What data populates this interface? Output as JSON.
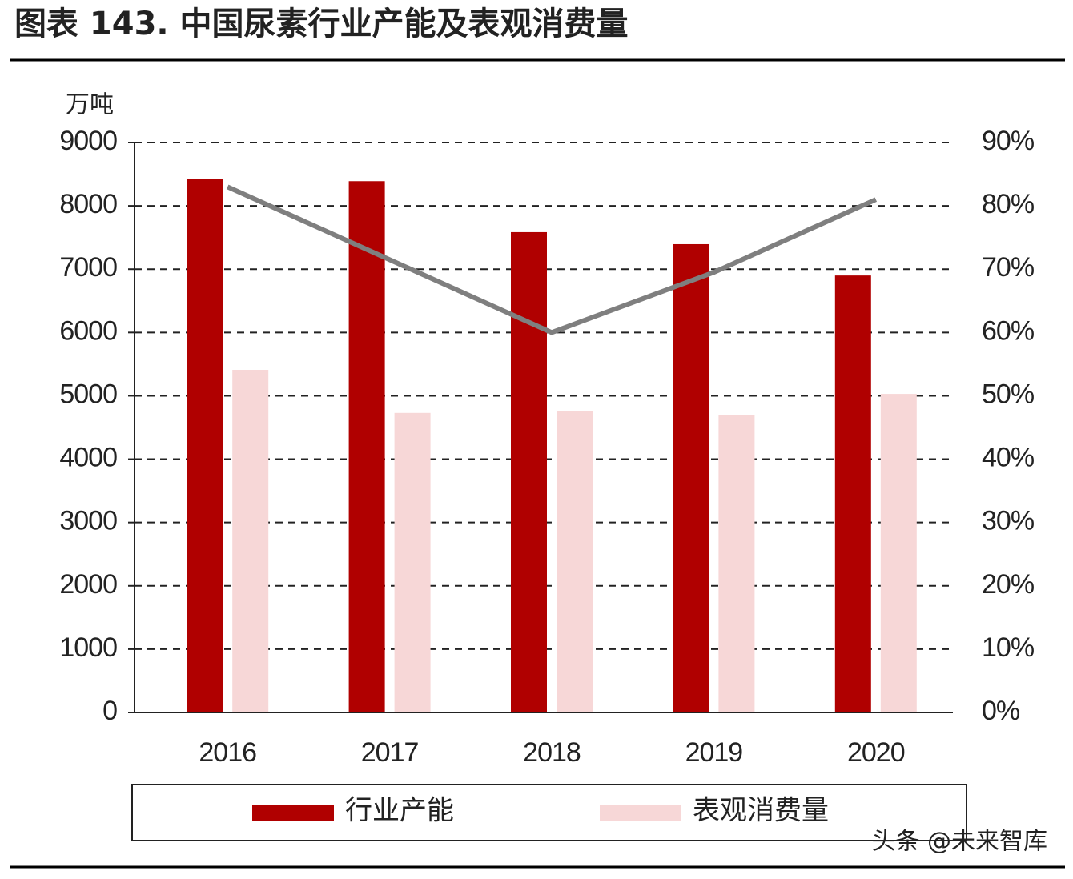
{
  "chart_data": {
    "type": "bar",
    "title": "图表 143. 中国尿素行业产能及表观消费量",
    "y_label": "万吨",
    "categories": [
      "2016",
      "2017",
      "2018",
      "2019",
      "2020"
    ],
    "series": [
      {
        "name": "行业产能",
        "color": "#b00000",
        "values": [
          8430,
          8390,
          7585,
          7395,
          6900
        ]
      },
      {
        "name": "表观消费量",
        "color": "#f7d7d7",
        "values": [
          5410,
          4730,
          4765,
          4700,
          5030
        ]
      },
      {
        "type": "line",
        "axis": "y2",
        "color": "#7f7f7f",
        "values": [
          83,
          71.5,
          60,
          69.5,
          81
        ]
      }
    ],
    "ylim": [
      0,
      9000
    ],
    "yticks": [
      0,
      1000,
      2000,
      3000,
      4000,
      5000,
      6000,
      7000,
      8000,
      9000
    ],
    "y2lim": [
      0,
      90
    ],
    "y2ticks": [
      {
        "value": 0,
        "label": "0%"
      },
      {
        "value": 10,
        "label": "10%"
      },
      {
        "value": 20,
        "label": "20%"
      },
      {
        "value": 30,
        "label": "30%"
      },
      {
        "value": 40,
        "label": "40%"
      },
      {
        "value": 50,
        "label": "50%"
      },
      {
        "value": 60,
        "label": "60%"
      },
      {
        "value": 70,
        "label": "70%"
      },
      {
        "value": 80,
        "label": "80%"
      },
      {
        "value": 90,
        "label": "90%"
      }
    ],
    "grid": true,
    "legend": "bottom",
    "watermark": "头条 @未来智库"
  }
}
